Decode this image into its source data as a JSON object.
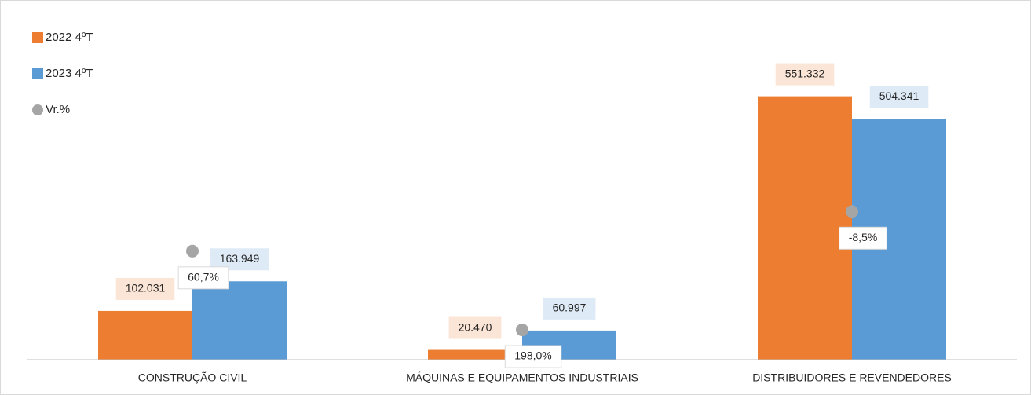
{
  "chart_data": {
    "type": "bar",
    "categories": [
      "CONSTRUÇÃO CIVIL",
      "MÁQUINAS E EQUIPAMENTOS INDUSTRIAIS",
      "DISTRIBUIDORES E REVENDEDORES"
    ],
    "series": [
      {
        "name": "2022 4ºT",
        "color": "#ed7d31",
        "label_bg": "#fbe5d6",
        "values": [
          102031,
          20470,
          551332
        ],
        "value_labels": [
          "102.031",
          "20.470",
          "551.332"
        ]
      },
      {
        "name": "2023 4ºT",
        "color": "#5b9bd5",
        "label_bg": "#deebf7",
        "values": [
          163949,
          60997,
          504341
        ],
        "value_labels": [
          "163.949",
          "60.997",
          "504.341"
        ]
      },
      {
        "name": "Vr.%",
        "type": "scatter",
        "axis": "y2",
        "color": "#a5a5a5",
        "values": [
          60.7,
          198.0,
          -8.5
        ],
        "value_labels": [
          "60,7%",
          "198,0%",
          "-8,5%"
        ]
      }
    ],
    "ylim": [
      0,
      600000
    ],
    "y2lim": [
      -250,
      250
    ],
    "y2_inverted": true,
    "legend": "top-left"
  }
}
